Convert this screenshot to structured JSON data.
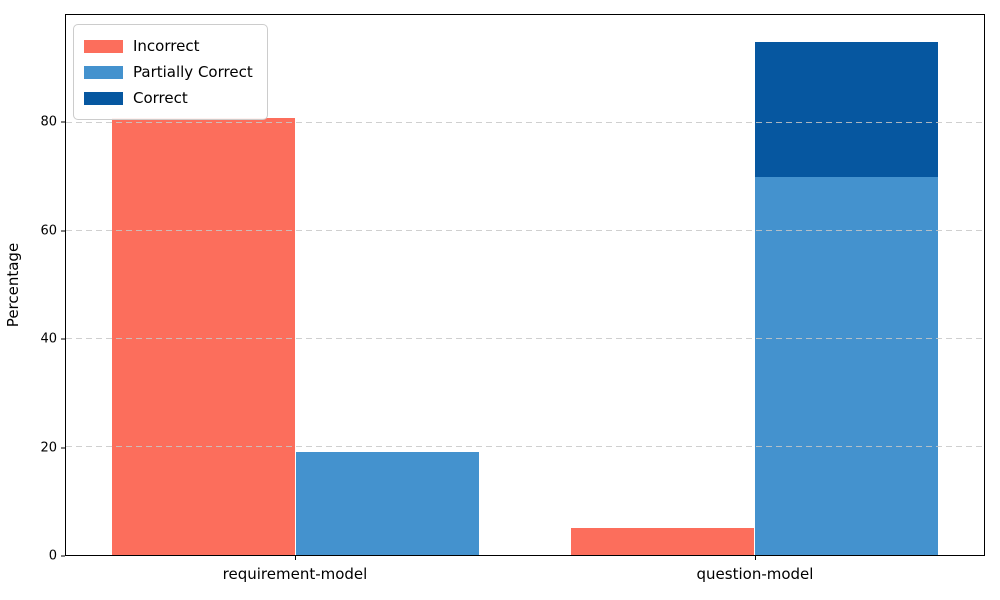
{
  "chart_data": {
    "type": "bar",
    "title": "",
    "xlabel": "",
    "ylabel": "Percentage",
    "ylim": [
      0,
      100
    ],
    "yticks": [
      0,
      20,
      40,
      60,
      80
    ],
    "xlim": [
      -0.5,
      1.5
    ],
    "bar_width_fraction": 0.4,
    "grid": "horizontal dashed gridlines drawn over bars",
    "legend_position": "upper left",
    "frame": "full box, black spines",
    "categories": [
      "requirement-model",
      "question-model"
    ],
    "series": [
      {
        "name": "Incorrect",
        "color": "#FC6E5C",
        "values": [
          81,
          5
        ],
        "placement": "left-bar"
      },
      {
        "name": "Partially Correct",
        "color": "#4492CE",
        "values": [
          19,
          70
        ],
        "placement": "right-bar-stack-bottom"
      },
      {
        "name": "Correct",
        "color": "#0657A0",
        "values": [
          0,
          25
        ],
        "placement": "right-bar-stack-top"
      }
    ]
  }
}
